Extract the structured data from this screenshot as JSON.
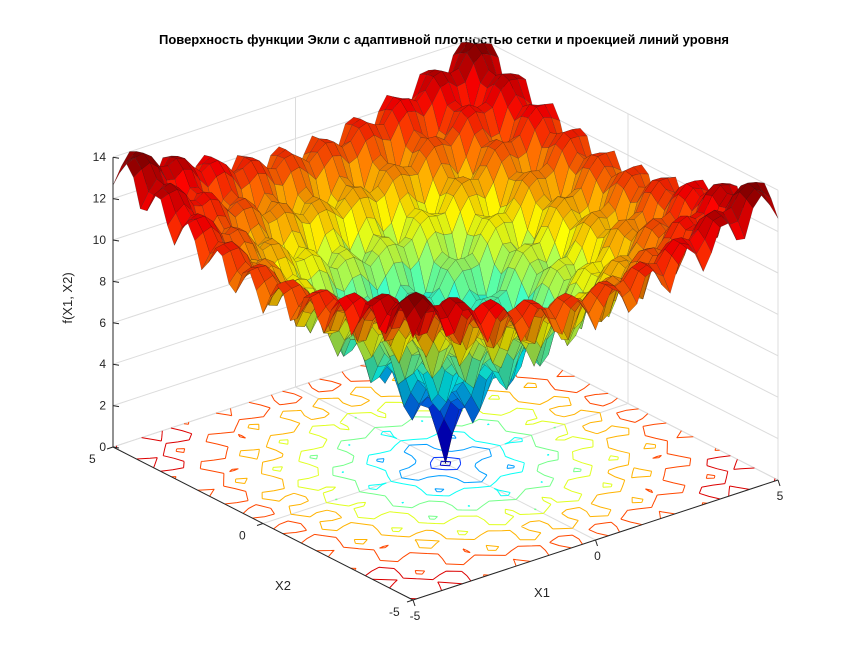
{
  "chart_data": {
    "type": "surface",
    "title": "Поверхность функции Экли с адаптивной плотностью сетки и проекцией линий уровня",
    "xlabel": "X1",
    "ylabel": "X2",
    "zlabel": "f(X1, X2)",
    "xlim": [
      -5,
      5
    ],
    "ylim": [
      -5,
      5
    ],
    "zlim": [
      0,
      14
    ],
    "x_ticks": [
      "-5",
      "0",
      "5"
    ],
    "y_ticks": [
      "-5",
      "0",
      "5"
    ],
    "z_ticks": [
      "0",
      "2",
      "4",
      "6",
      "8",
      "10",
      "12",
      "14"
    ],
    "function": "ackley",
    "minimum": {
      "x1": 0,
      "x2": 0,
      "f": 0
    },
    "max_value": 14.3,
    "colormap": "jet",
    "contour_projection": true,
    "grid": true
  }
}
